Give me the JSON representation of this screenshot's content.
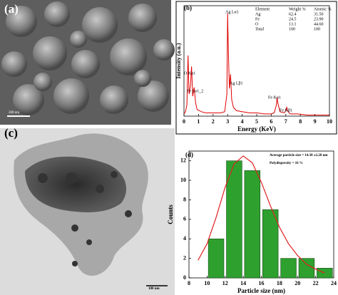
{
  "panels": [
    {
      "label": "(a)",
      "scale_bar": "200 nm"
    },
    {
      "label": "(c)",
      "scale_bar": "100 nm"
    }
  ],
  "chart_data": [
    {
      "type": "line",
      "panel": "(b)",
      "xlabel": "Energy (KeV)",
      "ylabel": "Intensity (a.u.)",
      "color": "#e00000",
      "xlim": [
        0,
        10
      ],
      "xticks": [
        0,
        1,
        2,
        3,
        4,
        5,
        6,
        7,
        8,
        9,
        10
      ],
      "ylim": [
        0,
        100
      ],
      "x": [
        0,
        0.1,
        0.2,
        0.28,
        0.35,
        0.45,
        0.52,
        0.6,
        0.7,
        0.8,
        0.9,
        1.2,
        1.5,
        2.0,
        2.5,
        2.8,
        2.95,
        3.0,
        3.05,
        3.12,
        3.2,
        3.28,
        3.4,
        3.6,
        4.0,
        4.5,
        5.0,
        5.5,
        6.0,
        6.2,
        6.35,
        6.4,
        6.45,
        6.6,
        6.9,
        7.0,
        7.06,
        7.12,
        7.3,
        7.8,
        8.5,
        9.0,
        9.5,
        10.0
      ],
      "values": [
        2,
        4,
        10,
        55,
        20,
        28,
        45,
        18,
        26,
        12,
        6,
        4,
        3,
        3,
        3,
        4,
        20,
        93,
        60,
        25,
        38,
        15,
        8,
        5,
        4,
        3,
        3,
        2,
        2,
        3,
        10,
        17,
        12,
        4,
        3,
        5,
        8,
        5,
        2,
        2,
        1,
        1,
        1,
        1
      ],
      "annotations": [
        "O Kα1",
        "Fe Lα1_2",
        "Ag Lα1",
        "Ag Lβ1",
        "Fe Kα1",
        "Fe Kβ1"
      ],
      "table": {
        "header": [
          "Element",
          "Weight %",
          "Atomic %"
        ],
        "rows": [
          [
            "Ag",
            "62.4",
            "31.50"
          ],
          [
            "Fe",
            "24.5",
            "23.90"
          ],
          [
            "O",
            "13.1",
            "44.60"
          ],
          [
            "Total",
            "100",
            "100"
          ]
        ]
      }
    },
    {
      "type": "histogram",
      "panel": "(d)",
      "xlabel": "Particle size (nm)",
      "ylabel": "Counts",
      "color": "#2ea02e",
      "edge_color": "#1a4a1a",
      "bins": [
        10,
        12,
        14,
        16,
        18,
        20,
        22,
        24
      ],
      "values": [
        4,
        12,
        11,
        7,
        2,
        2,
        1
      ],
      "xlim": [
        8,
        24
      ],
      "xticks": [
        8,
        10,
        12,
        14,
        16,
        18,
        20,
        22,
        24
      ],
      "ylim": [
        0,
        13
      ],
      "yticks": [
        0,
        2,
        4,
        6,
        8,
        10,
        12
      ],
      "fit": {
        "color": "#e02020",
        "x": [
          9,
          10,
          11,
          12,
          13,
          14,
          15,
          16,
          17,
          18,
          19,
          20,
          21,
          22,
          23
        ],
        "values": [
          1.8,
          3.5,
          6.2,
          9.3,
          11.7,
          12.5,
          11.8,
          9.8,
          7.4,
          5.2,
          3.5,
          2.3,
          1.4,
          0.9,
          0.5
        ]
      },
      "annotations": [
        "Average particle size = 14.30 ±2.20 nm",
        "Polydispersity = 16 %"
      ]
    }
  ]
}
